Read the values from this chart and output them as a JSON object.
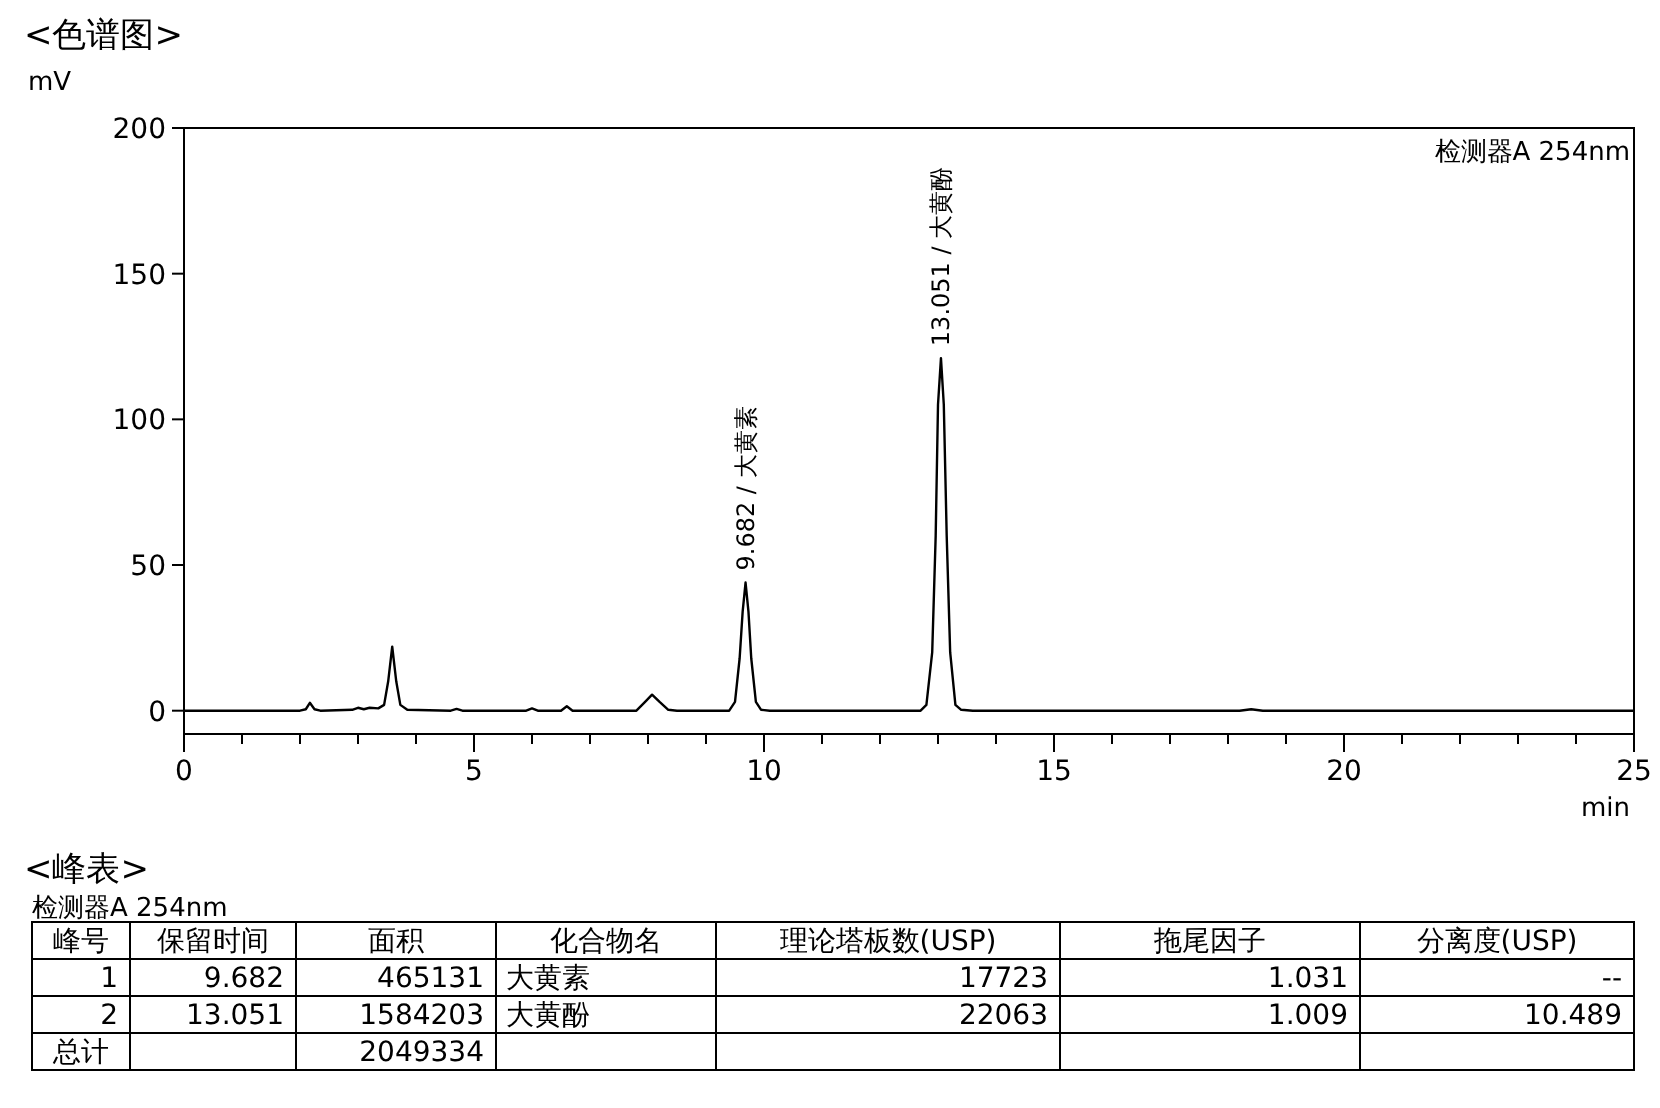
{
  "chart_data": [
    {
      "type": "line",
      "title": "<色谱图>",
      "ylabel": "mV",
      "xlabel": "min",
      "xlim": [
        0,
        25
      ],
      "ylim": [
        -8,
        200
      ],
      "xticks": [
        0,
        {
          "value": 1,
          "label": null
        },
        {
          "value": 2,
          "label": null
        },
        {
          "value": 3,
          "label": null
        },
        {
          "value": 4,
          "label": null
        },
        5,
        {
          "value": 6,
          "label": null
        },
        {
          "value": 7,
          "label": null
        },
        {
          "value": 8,
          "label": null
        },
        {
          "value": 9,
          "label": null
        },
        10,
        {
          "value": 11,
          "label": null
        },
        {
          "value": 12,
          "label": null
        },
        {
          "value": 13,
          "label": null
        },
        {
          "value": 14,
          "label": null
        },
        15,
        {
          "value": 16,
          "label": null
        },
        {
          "value": 17,
          "label": null
        },
        {
          "value": 18,
          "label": null
        },
        {
          "value": 19,
          "label": null
        },
        20,
        {
          "value": 21,
          "label": null
        },
        {
          "value": 22,
          "label": null
        },
        {
          "value": 23,
          "label": null
        },
        {
          "value": 24,
          "label": null
        },
        25
      ],
      "yticks": [
        0,
        50,
        100,
        150,
        200
      ],
      "x": [
        0,
        2.0,
        2.1,
        2.17,
        2.25,
        2.35,
        2.9,
        3.0,
        3.1,
        3.2,
        3.35,
        3.45,
        3.52,
        3.59,
        3.66,
        3.73,
        3.85,
        4.6,
        4.7,
        4.8,
        5.9,
        6.0,
        6.1,
        6.5,
        6.6,
        6.7,
        7.8,
        7.95,
        8.07,
        8.2,
        8.35,
        8.5,
        9.4,
        9.5,
        9.58,
        9.632,
        9.682,
        9.732,
        9.78,
        9.86,
        9.95,
        10.1,
        12.7,
        12.8,
        12.9,
        12.96,
        13.0,
        13.051,
        13.1,
        13.15,
        13.21,
        13.3,
        13.4,
        13.6,
        18.2,
        18.4,
        18.6,
        25
      ],
      "series": [
        {
          "color": "#000000",
          "values": [
            0,
            0,
            0.5,
            2.7,
            0.5,
            0,
            0.3,
            1,
            0.5,
            1,
            0.8,
            2,
            10,
            22,
            10,
            2,
            0.3,
            0,
            0.6,
            0,
            0,
            0.8,
            0,
            0,
            1.5,
            0,
            0,
            3,
            5.5,
            3,
            0.3,
            0,
            0,
            3,
            18,
            34,
            44,
            34,
            18,
            3,
            0.3,
            0,
            0,
            2,
            20,
            60,
            105,
            121,
            105,
            60,
            20,
            2,
            0.3,
            0,
            0,
            0.5,
            0,
            0
          ]
        }
      ],
      "annotations": [
        "检测器A 254nm",
        {
          "text": "9.682 / 大黄素",
          "x": 9.682,
          "y": 44
        },
        {
          "text": "13.051 / 大黄酚",
          "x": 13.051,
          "y": 121
        }
      ]
    },
    {
      "type": "other",
      "title": "<峰表>",
      "subtitle": "检测器A 254nm",
      "categories": [
        "峰号",
        "保留时间",
        "面积",
        "化合物名",
        "理论塔板数(USP)",
        "拖尾因子",
        "分离度(USP)"
      ],
      "cell_labels": [
        [
          "1",
          "9.682",
          "465131",
          "大黄素",
          "17723",
          "1.031",
          "--"
        ],
        [
          "2",
          "13.051",
          "1584203",
          "大黄酚",
          "22063",
          "1.009",
          "10.489"
        ],
        [
          "总计",
          null,
          "2049334",
          null,
          null,
          null,
          null
        ]
      ]
    }
  ]
}
